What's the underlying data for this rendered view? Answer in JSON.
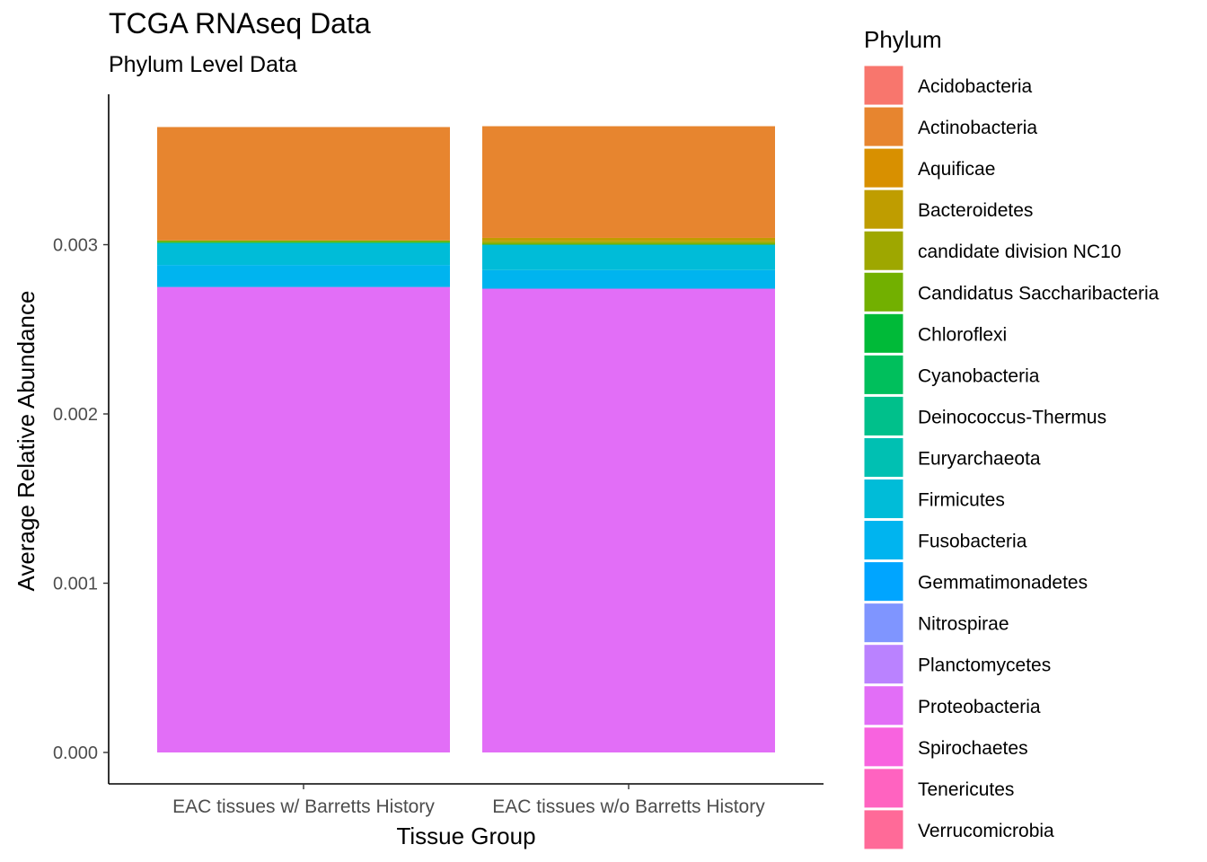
{
  "chart_data": {
    "type": "bar",
    "stacked": true,
    "title": "TCGA RNAseq Data",
    "subtitle": "Phylum Level Data",
    "xlabel": "Tissue Group",
    "ylabel": "Average Relative Abundance",
    "ylim": [
      0,
      0.00376
    ],
    "yticks": [
      "0.000",
      "0.001",
      "0.002",
      "0.003"
    ],
    "grid": false,
    "legend_position": "right",
    "legend_title": "Phylum",
    "categories": [
      "EAC tissues w/ Barretts History",
      "EAC tissues w/o Barretts History"
    ],
    "series": [
      {
        "name": "Acidobacteria",
        "color": "#F8766D",
        "values": [
          0.0,
          0.0
        ]
      },
      {
        "name": "Actinobacteria",
        "color": "#E7852F",
        "values": [
          0.00067,
          0.00066
        ]
      },
      {
        "name": "Aquificae",
        "color": "#D89000",
        "values": [
          0.0,
          0.0
        ]
      },
      {
        "name": "Bacteroidetes",
        "color": "#BF9D00",
        "values": [
          0.0,
          2e-05
        ]
      },
      {
        "name": "candidate division NC10",
        "color": "#9EA700",
        "values": [
          0.0,
          1e-05
        ]
      },
      {
        "name": "Candidatus Saccharibacteria",
        "color": "#72B000",
        "values": [
          1e-05,
          1e-05
        ]
      },
      {
        "name": "Chloroflexi",
        "color": "#00BA38",
        "values": [
          5e-06,
          0.0
        ]
      },
      {
        "name": "Cyanobacteria",
        "color": "#00BF5C",
        "values": [
          0.0,
          0.0
        ]
      },
      {
        "name": "Deinococcus-Thermus",
        "color": "#00C08B",
        "values": [
          0.0,
          0.0
        ]
      },
      {
        "name": "Euryarchaeota",
        "color": "#00C0B2",
        "values": [
          0.0,
          0.0
        ]
      },
      {
        "name": "Firmicutes",
        "color": "#00BCD8",
        "values": [
          0.00013,
          0.00015
        ]
      },
      {
        "name": "Fusobacteria",
        "color": "#00B4EF",
        "values": [
          0.00013,
          0.00011
        ]
      },
      {
        "name": "Gemmatimonadetes",
        "color": "#00A5FF",
        "values": [
          0.0,
          0.0
        ]
      },
      {
        "name": "Nitrospirae",
        "color": "#7F95FF",
        "values": [
          0.0,
          0.0
        ]
      },
      {
        "name": "Planctomycetes",
        "color": "#BA82FF",
        "values": [
          0.0,
          0.0
        ]
      },
      {
        "name": "Proteobacteria",
        "color": "#E26EF7",
        "values": [
          0.00275,
          0.00274
        ]
      },
      {
        "name": "Spirochaetes",
        "color": "#F863DF",
        "values": [
          0.0,
          0.0
        ]
      },
      {
        "name": "Tenericutes",
        "color": "#FF63C0",
        "values": [
          0.0,
          0.0
        ]
      },
      {
        "name": "Verrucomicrobia",
        "color": "#FF6A98",
        "values": [
          0.0,
          0.0
        ]
      }
    ]
  }
}
